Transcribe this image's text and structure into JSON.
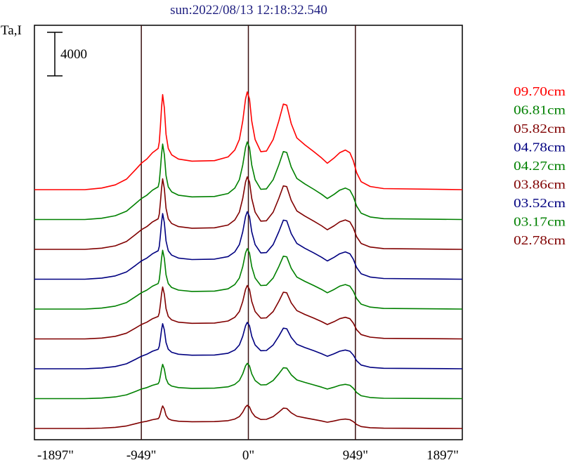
{
  "chart_data": {
    "type": "line",
    "title": "sun:2022/08/13 12:18:32.540",
    "ylabel": "Ta,I",
    "xlabel": "",
    "scale_bar_label": "4000",
    "x_ticks": [
      {
        "value": -1897,
        "label": "-1897\""
      },
      {
        "value": -949,
        "label": "-949\""
      },
      {
        "value": 0,
        "label": "0\""
      },
      {
        "value": 949,
        "label": "949\""
      },
      {
        "value": 1897,
        "label": "1897\""
      }
    ],
    "xlim": [
      -1897,
      1897
    ],
    "vertical_lines": [
      -949,
      0,
      949
    ],
    "profile_points": [
      [
        -1897,
        0
      ],
      [
        -1450,
        0
      ],
      [
        -1300,
        0.03
      ],
      [
        -1180,
        0.09
      ],
      [
        -1080,
        0.2
      ],
      [
        -1000,
        0.38
      ],
      [
        -949,
        0.5
      ],
      [
        -900,
        0.58
      ],
      [
        -850,
        0.7
      ],
      [
        -800,
        0.78
      ],
      [
        -790,
        0.9
      ],
      [
        -780,
        1.2
      ],
      [
        -770,
        1.55
      ],
      [
        -760,
        1.8
      ],
      [
        -745,
        1.55
      ],
      [
        -730,
        1.05
      ],
      [
        -710,
        0.78
      ],
      [
        -680,
        0.66
      ],
      [
        -620,
        0.58
      ],
      [
        -500,
        0.54
      ],
      [
        -300,
        0.55
      ],
      [
        -180,
        0.62
      ],
      [
        -120,
        0.75
      ],
      [
        -80,
        0.95
      ],
      [
        -50,
        1.3
      ],
      [
        -25,
        1.72
      ],
      [
        -10,
        1.85
      ],
      [
        10,
        1.72
      ],
      [
        30,
        1.3
      ],
      [
        60,
        0.95
      ],
      [
        110,
        0.72
      ],
      [
        160,
        0.73
      ],
      [
        220,
        0.95
      ],
      [
        270,
        1.3
      ],
      [
        310,
        1.62
      ],
      [
        340,
        1.6
      ],
      [
        380,
        1.25
      ],
      [
        430,
        0.98
      ],
      [
        500,
        0.85
      ],
      [
        580,
        0.72
      ],
      [
        650,
        0.6
      ],
      [
        700,
        0.5
      ],
      [
        760,
        0.6
      ],
      [
        810,
        0.7
      ],
      [
        860,
        0.75
      ],
      [
        900,
        0.7
      ],
      [
        930,
        0.55
      ],
      [
        960,
        0.32
      ],
      [
        1000,
        0.15
      ],
      [
        1080,
        0.06
      ],
      [
        1200,
        0.02
      ],
      [
        1897,
        0
      ]
    ],
    "series": [
      {
        "name": "09.70cm",
        "color": "#ff0000",
        "amplitude": 4850
      },
      {
        "name": "06.81cm",
        "color": "#008000",
        "amplitude": 3850
      },
      {
        "name": "05.82cm",
        "color": "#800000",
        "amplitude": 3600
      },
      {
        "name": "04.78cm",
        "color": "#000080",
        "amplitude": 3350
      },
      {
        "name": "04.27cm",
        "color": "#008000",
        "amplitude": 3000
      },
      {
        "name": "03.86cm",
        "color": "#800000",
        "amplitude": 2650
      },
      {
        "name": "03.52cm",
        "color": "#000080",
        "amplitude": 2300
      },
      {
        "name": "03.17cm",
        "color": "#008000",
        "amplitude": 1750
      },
      {
        "name": "02.78cm",
        "color": "#800000",
        "amplitude": 1150
      }
    ]
  }
}
